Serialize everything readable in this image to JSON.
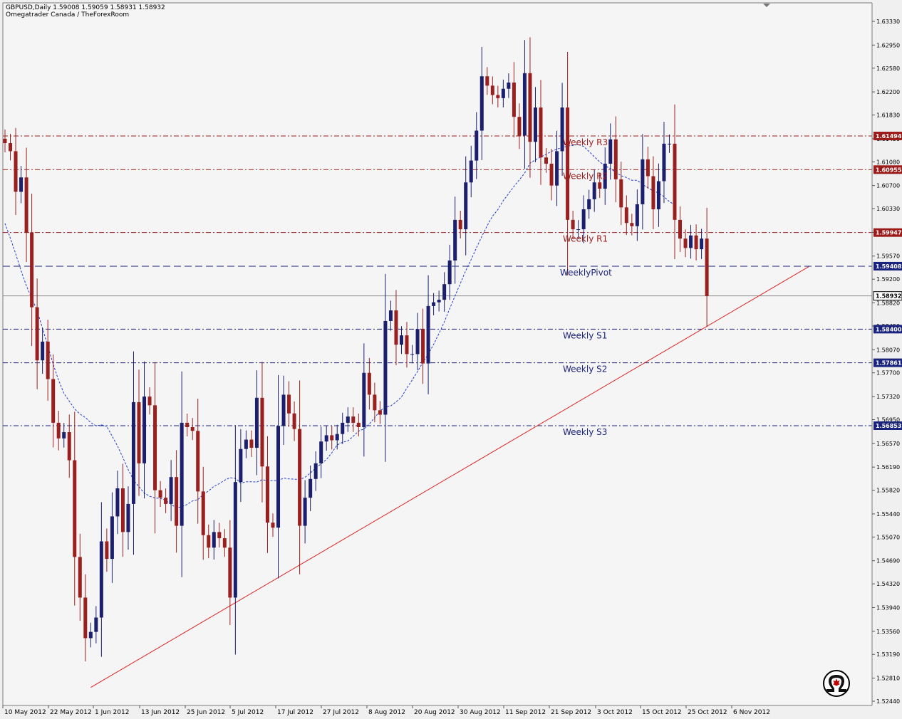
{
  "header": {
    "symbol_line": "GBPUSD,Daily  1.59008 1.59059 1.58931 1.58932",
    "source_line": "Omegatrader Canada / TheForexRoom"
  },
  "chart_data": {
    "type": "candlestick",
    "symbol": "GBPUSD",
    "timeframe": "Daily",
    "ohlc_header": {
      "open": 1.59008,
      "high": 1.59059,
      "low": 1.58931,
      "close": 1.58932
    },
    "current_price": 1.58932,
    "ylim": [
      1.5244,
      1.6357
    ],
    "y_ticks": [
      "1.63330",
      "1.62950",
      "1.62580",
      "1.62200",
      "1.61830",
      "1.61450",
      "1.61080",
      "1.60700",
      "1.60330",
      "1.59950",
      "1.59570",
      "1.59200",
      "1.58820",
      "1.58450",
      "1.58070",
      "1.57700",
      "1.57320",
      "1.56950",
      "1.56570",
      "1.56190",
      "1.55820",
      "1.55440",
      "1.55070",
      "1.54690",
      "1.54320",
      "1.53940",
      "1.53560",
      "1.53190",
      "1.52810",
      "1.52440"
    ],
    "x_labels": [
      {
        "label": "10 May 2012",
        "index": 0
      },
      {
        "label": "22 May 2012",
        "index": 8
      },
      {
        "label": "1 Jun 2012",
        "index": 16
      },
      {
        "label": "13 Jun 2012",
        "index": 24
      },
      {
        "label": "25 Jun 2012",
        "index": 32
      },
      {
        "label": "5 Jul 2012",
        "index": 40
      },
      {
        "label": "17 Jul 2012",
        "index": 48
      },
      {
        "label": "27 Jul 2012",
        "index": 56
      },
      {
        "label": "8 Aug 2012",
        "index": 64
      },
      {
        "label": "20 Aug 2012",
        "index": 72
      },
      {
        "label": "30 Aug 2012",
        "index": 80
      },
      {
        "label": "11 Sep 2012",
        "index": 88
      },
      {
        "label": "21 Sep 2012",
        "index": 96
      },
      {
        "label": "3 Oct 2012",
        "index": 104
      },
      {
        "label": "15 Oct 2012",
        "index": 112
      },
      {
        "label": "25 Oct 2012",
        "index": 120
      },
      {
        "label": "6 Nov 2012",
        "index": 128
      }
    ],
    "levels": [
      {
        "label": "Weekly R3",
        "value": 1.61494,
        "tag": "1.61494",
        "kind": "resistance",
        "color": "#9c1c1c"
      },
      {
        "label": "Weekly R2",
        "value": 1.60955,
        "tag": "1.60955",
        "kind": "resistance",
        "color": "#9c1c1c"
      },
      {
        "label": "Weekly R1",
        "value": 1.59947,
        "tag": "1.59947",
        "kind": "resistance",
        "color": "#9c1c1c"
      },
      {
        "label": "WeeklyPivot",
        "value": 1.59408,
        "tag": "1.59408",
        "kind": "pivot",
        "color": "#1a237e"
      },
      {
        "label": "Weekly S1",
        "value": 1.584,
        "tag": "1.58400",
        "kind": "support",
        "color": "#1a237e"
      },
      {
        "label": "Weekly S2",
        "value": 1.57861,
        "tag": "1.57861",
        "kind": "support",
        "color": "#1a237e"
      },
      {
        "label": "Weekly S3",
        "value": 1.56853,
        "tag": "1.56853",
        "kind": "support",
        "color": "#1a237e"
      }
    ],
    "trendline": {
      "from": {
        "index": 16,
        "price": 1.5266
      },
      "to": {
        "index": 150,
        "price": 1.594
      }
    },
    "closes": [
      1.6138,
      1.6125,
      1.606,
      1.6083,
      1.5995,
      1.5875,
      1.579,
      1.582,
      1.576,
      1.569,
      1.5665,
      1.5675,
      1.563,
      1.5475,
      1.541,
      1.5345,
      1.5355,
      1.5378,
      1.55,
      1.5472,
      1.554,
      1.5585,
      1.5515,
      1.556,
      1.5723,
      1.5625,
      1.5732,
      1.5718,
      1.5582,
      1.557,
      1.556,
      1.5603,
      1.5525,
      1.569,
      1.5683,
      1.5677,
      1.558,
      1.551,
      1.549,
      1.5515,
      1.5505,
      1.549,
      1.541,
      1.5595,
      1.5648,
      1.5663,
      1.565,
      1.573,
      1.562,
      1.553,
      1.5522,
      1.5685,
      1.5735,
      1.5705,
      1.568,
      1.5525,
      1.557,
      1.56,
      1.5625,
      1.566,
      1.567,
      1.5662,
      1.5672,
      1.569,
      1.57,
      1.569,
      1.5683,
      1.577,
      1.5735,
      1.571,
      1.5703,
      1.5853,
      1.587,
      1.5815,
      1.583,
      1.58,
      1.58,
      1.584,
      1.5785,
      1.5877,
      1.5883,
      1.5887,
      1.5912,
      1.595,
      1.6015,
      1.6,
      1.6075,
      1.611,
      1.6158,
      1.6245,
      1.623,
      1.6215,
      1.621,
      1.6225,
      1.6235,
      1.618,
      1.615,
      1.625,
      1.614,
      1.6195,
      1.6115,
      1.6105,
      1.607,
      1.6125,
      1.6195,
      1.6015,
      1.6,
      1.6,
      1.6032,
      1.6048,
      1.6075,
      1.6065,
      1.6105,
      1.6144,
      1.608,
      1.6035,
      1.601,
      1.6005,
      1.604,
      1.6112,
      1.6085,
      1.6032,
      1.6077,
      1.6137,
      1.6137,
      1.6015,
      1.5985,
      1.597,
      1.599,
      1.5968,
      1.5985,
      1.5893
    ]
  },
  "colors": {
    "bull": "#1b1f6e",
    "bear": "#9a1f1f",
    "ma": "#1f3fd0",
    "trendline": "#e02020",
    "grid_bg": "#f5f5f5",
    "plot_border": "#7a7a7a"
  },
  "logo": {
    "icon": "omega-maple-leaf-icon",
    "color_symbol": "#c00000"
  }
}
